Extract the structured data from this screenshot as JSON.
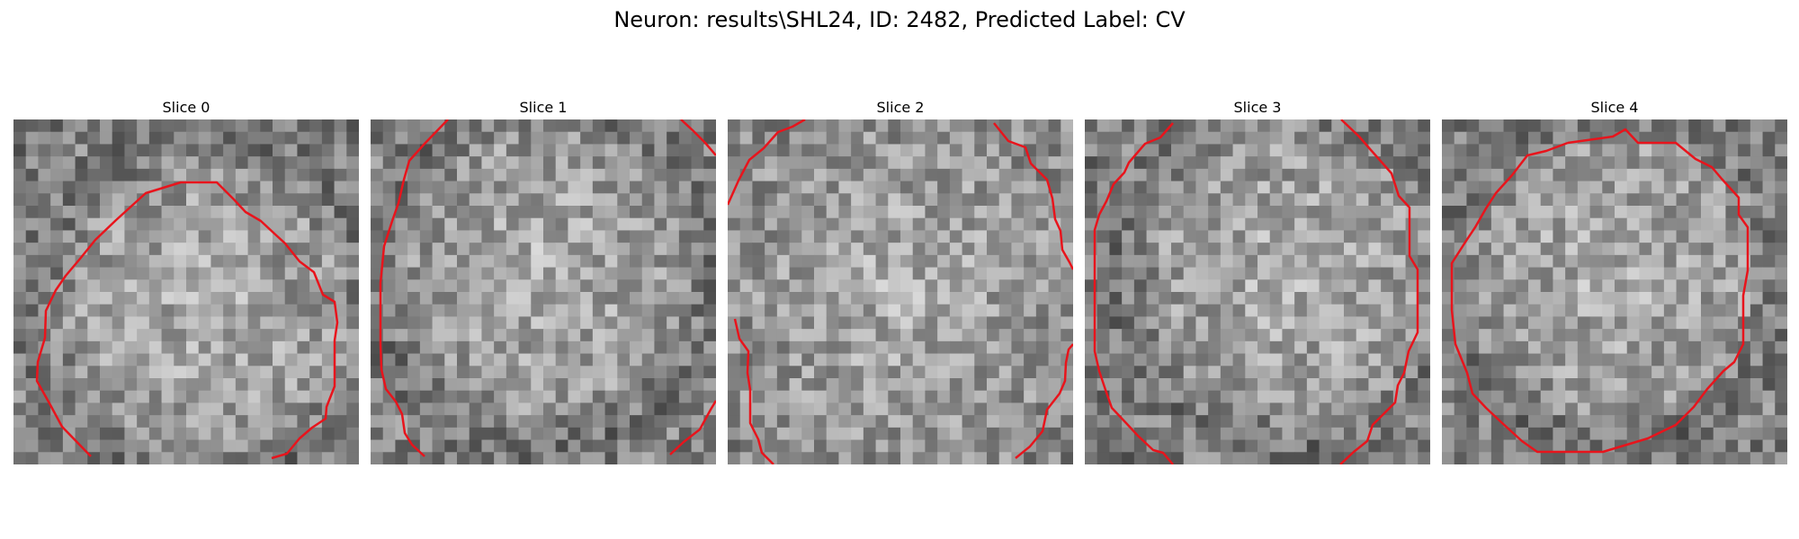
{
  "figure": {
    "title": "Neuron: results\\SHL24, ID: 2482, Predicted Label: CV",
    "contour_color": "#e8141c",
    "colormap": "grayscale",
    "grid_cells": 28
  },
  "panels": [
    {
      "label": "Slice 0",
      "seed": 11,
      "outline": "arc-bottom-gap",
      "bright_center": [
        0.55,
        0.55
      ],
      "dark_corners": true
    },
    {
      "label": "Slice 1",
      "seed": 23,
      "outline": "arc-open-sides",
      "bright_center": [
        0.5,
        0.45
      ],
      "dark_corners": true
    },
    {
      "label": "Slice 2",
      "seed": 37,
      "outline": "corner-arcs",
      "bright_center": [
        0.5,
        0.5
      ],
      "dark_corners": false
    },
    {
      "label": "Slice 3",
      "seed": 41,
      "outline": "arc-open-top-bottom",
      "bright_center": [
        0.6,
        0.45
      ],
      "dark_corners": true
    },
    {
      "label": "Slice 4",
      "seed": 53,
      "outline": "closed-octagon",
      "bright_center": [
        0.5,
        0.45
      ],
      "dark_corners": true
    }
  ]
}
